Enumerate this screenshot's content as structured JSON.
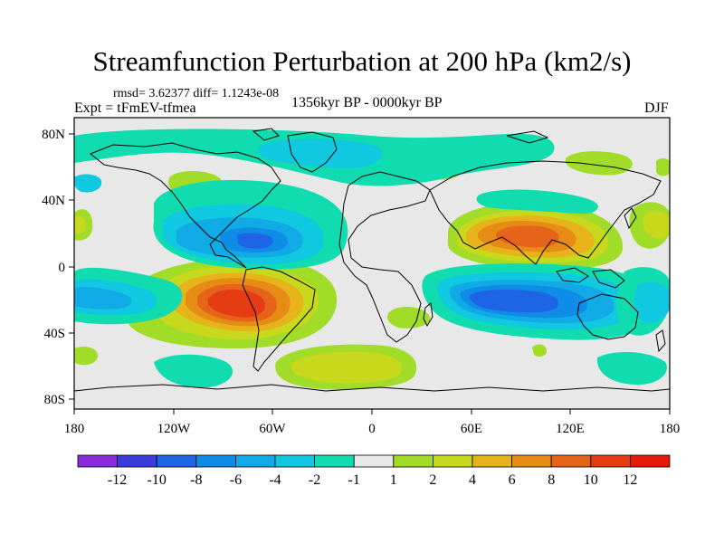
{
  "header": {
    "title": "Streamfunction Perturbation at 200 hPa (km2/s)",
    "stats": "rmsd= 3.62377 diff= 1.1243e-08",
    "experiment": "Expt = tFmEV-tfmea",
    "period": "1356kyr BP - 0000kyr BP",
    "season": "DJF"
  },
  "map": {
    "x_ticks": [
      "180",
      "120W",
      "60W",
      "0",
      "60E",
      "120E",
      "180"
    ],
    "y_ticks": [
      "80N",
      "40N",
      "0",
      "40S",
      "80S"
    ],
    "projection": "cylindrical equidistant",
    "lon_range": [
      -180,
      180
    ],
    "lat_range": [
      -90,
      90
    ],
    "background_color": "#e8e8e8",
    "coastline_color": "#000000"
  },
  "colorbar": {
    "labels": [
      "-12",
      "-10",
      "-8",
      "-6",
      "-4",
      "-2",
      "-1",
      "1",
      "2",
      "4",
      "6",
      "8",
      "10",
      "12"
    ],
    "colors": [
      "#8c2bdc",
      "#3c3cdc",
      "#1e64e6",
      "#0f8ce6",
      "#10aae6",
      "#10c8e0",
      "#10dcb0",
      "#e8e8e8",
      "#a0dc28",
      "#c8d81c",
      "#e6b41a",
      "#e68c14",
      "#e6641a",
      "#e63c14",
      "#e61a0a"
    ]
  },
  "chart_data": {
    "type": "contour-map",
    "variable": "Streamfunction Perturbation at 200 hPa",
    "units": "km2/s",
    "levels": [
      -12,
      -10,
      -8,
      -6,
      -4,
      -2,
      -1,
      1,
      2,
      4,
      6,
      8,
      10,
      12
    ]
  }
}
